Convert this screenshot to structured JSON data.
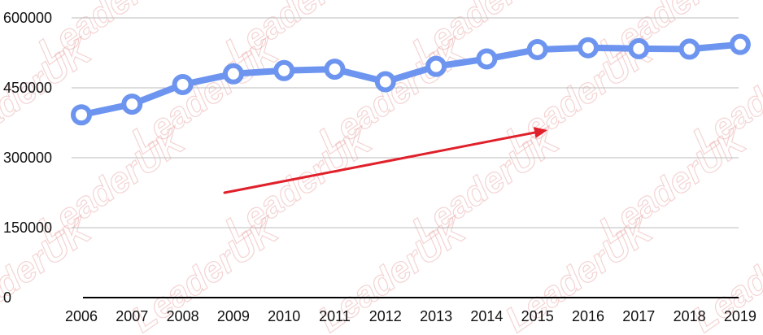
{
  "chart_data": {
    "type": "line",
    "title": "",
    "xlabel": "",
    "ylabel": "",
    "categories": [
      "2006",
      "2007",
      "2008",
      "2009",
      "2010",
      "2011",
      "2012",
      "2013",
      "2014",
      "2015",
      "2016",
      "2017",
      "2018",
      "2019"
    ],
    "series": [
      {
        "values": [
          392000,
          415000,
          457000,
          480000,
          487000,
          490000,
          463000,
          496000,
          512000,
          532000,
          536000,
          534000,
          533000,
          543000
        ]
      }
    ],
    "ylim": [
      0,
      600000
    ],
    "yticks": [
      "0",
      "150000",
      "300000",
      "450000",
      "600000"
    ],
    "grid": true,
    "legend": "none",
    "line_color": "#6d95ef",
    "arrow_color": "#e0202a",
    "gridline_color": "#bbbbbb"
  },
  "watermark": {
    "text": "LeaderUK"
  }
}
